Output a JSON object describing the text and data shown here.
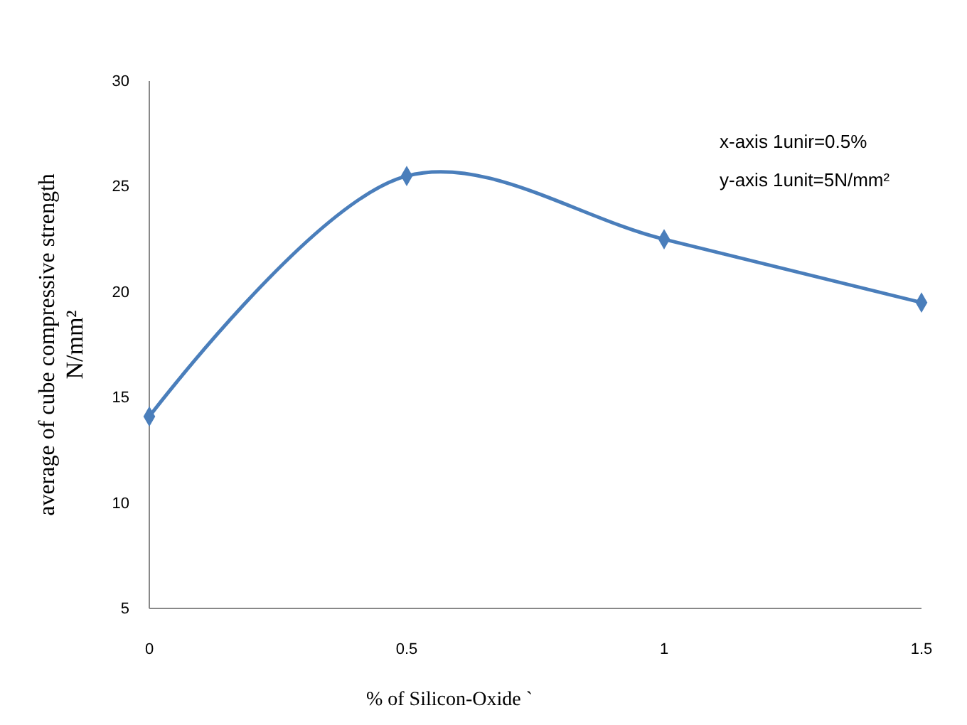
{
  "chart_data": {
    "type": "line",
    "xlabel": "% of  Silicon-Oxide `",
    "ylabel": "average of cube compressive strength\nN/mm²",
    "x": [
      0,
      0.5,
      1,
      1.5
    ],
    "series": [
      {
        "color": "#4a7ebb",
        "values": [
          14.1,
          25.5,
          22.5,
          19.5
        ]
      }
    ],
    "xlim": [
      0,
      1.5
    ],
    "xticks": [
      0,
      0.5,
      1,
      1.5
    ],
    "ylim": [
      5,
      30
    ],
    "yticks": [
      5,
      10,
      15,
      20,
      25,
      30
    ],
    "grid": false,
    "marker": "diamond",
    "line_style": "solid",
    "annotations": [
      "x-axis 1unir=0.5%",
      "y-axis 1unit=5N/mm²"
    ]
  }
}
